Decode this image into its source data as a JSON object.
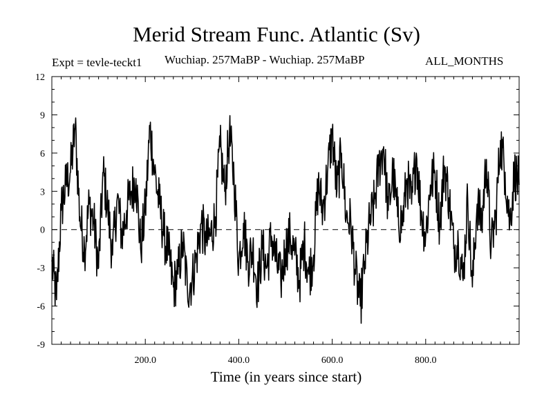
{
  "title": "Merid Stream Func. Atlantic (Sv)",
  "expt_label": "Expt = tevle-teckt1",
  "period_label": "Wuchiap. 257MaBP - Wuchiap. 257MaBP",
  "months_label": "ALL_MONTHS",
  "chart_data": {
    "type": "line",
    "title": "Merid Stream Func. Atlantic (Sv)",
    "xlabel": "Time (in years since start)",
    "ylabel": "",
    "xlim": [
      0,
      1000
    ],
    "ylim": [
      -9,
      12
    ],
    "x_ticks": [
      200,
      400,
      600,
      800
    ],
    "x_tick_labels": [
      "200.0",
      "400.0",
      "600.0",
      "800.0"
    ],
    "y_ticks": [
      -9,
      -6,
      -3,
      0,
      3,
      6,
      9,
      12
    ],
    "y_tick_labels": [
      "-9",
      "-6",
      "-3",
      "0",
      "3",
      "6",
      "9",
      "12"
    ],
    "reference_line": 0,
    "grid": false,
    "series": [
      {
        "x": [
          0,
          10,
          20,
          30,
          40,
          50,
          60,
          70,
          80,
          90,
          100,
          110,
          120,
          130,
          140,
          150,
          160,
          170,
          180,
          190,
          200,
          210,
          220,
          230,
          240,
          250,
          260,
          270,
          280,
          290,
          300,
          310,
          320,
          330,
          340,
          350,
          360,
          370,
          380,
          390,
          400,
          410,
          420,
          430,
          440,
          450,
          460,
          470,
          480,
          490,
          500,
          510,
          520,
          530,
          540,
          550,
          560,
          570,
          580,
          590,
          600,
          610,
          620,
          630,
          640,
          650,
          660,
          670,
          680,
          690,
          700,
          710,
          720,
          730,
          740,
          750,
          760,
          770,
          780,
          790,
          800,
          810,
          820,
          830,
          840,
          850,
          860,
          870,
          880,
          890,
          900,
          910,
          920,
          930,
          940,
          950,
          960,
          970,
          980,
          990,
          1000
        ],
        "y": [
          -2.5,
          -5.5,
          1.5,
          3.5,
          4.5,
          8.0,
          1.0,
          -1.5,
          2.0,
          0.5,
          -3.0,
          4.5,
          1.5,
          -2.0,
          2.5,
          -0.5,
          1.5,
          3.0,
          4.0,
          -1.5,
          1.5,
          8.0,
          4.5,
          2.0,
          -0.5,
          -2.0,
          -4.5,
          -3.5,
          -1.0,
          -4.5,
          -4.0,
          -2.0,
          0.5,
          -1.0,
          -0.5,
          1.0,
          6.5,
          3.0,
          7.5,
          4.0,
          -2.5,
          0.5,
          -2.5,
          -1.5,
          -4.5,
          -1.5,
          -3.0,
          -0.5,
          -2.5,
          -4.0,
          -1.5,
          -0.5,
          -2.0,
          -4.0,
          -1.0,
          -3.5,
          -2.0,
          3.5,
          1.5,
          4.5,
          7.5,
          3.0,
          6.0,
          1.0,
          0.5,
          -3.5,
          -6.0,
          -2.5,
          0.5,
          2.0,
          5.0,
          6.5,
          1.5,
          4.5,
          1.0,
          0.5,
          4.0,
          2.0,
          6.0,
          1.5,
          -0.5,
          3.5,
          4.5,
          0.5,
          5.0,
          2.5,
          -1.5,
          -1.0,
          -4.0,
          2.5,
          -4.5,
          2.0,
          0.5,
          5.5,
          -1.5,
          1.0,
          7.0,
          4.5,
          0.5,
          4.5,
          3.5
        ]
      }
    ]
  }
}
